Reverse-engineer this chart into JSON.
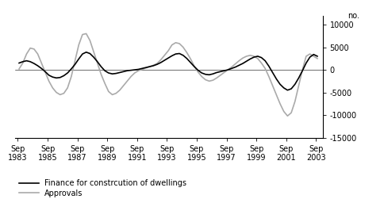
{
  "title": "",
  "ylabel_right": "no.",
  "ylim": [
    -15000,
    12000
  ],
  "yticks": [
    -15000,
    -10000,
    -5000,
    0,
    5000,
    10000
  ],
  "xtick_years": [
    1983,
    1985,
    1987,
    1989,
    1991,
    1993,
    1995,
    1997,
    1999,
    2001,
    2003
  ],
  "legend_finance": "Finance for constrcution of dwellings",
  "legend_approvals": "Approvals",
  "finance_color": "#000000",
  "approvals_color": "#aaaaaa",
  "finance_linewidth": 1.2,
  "approvals_linewidth": 1.2,
  "background_color": "#ffffff",
  "finance_x": [
    1983.75,
    1984.0,
    1984.25,
    1984.5,
    1984.75,
    1985.0,
    1985.25,
    1985.5,
    1985.75,
    1986.0,
    1986.25,
    1986.5,
    1986.75,
    1987.0,
    1987.25,
    1987.5,
    1987.75,
    1988.0,
    1988.25,
    1988.5,
    1988.75,
    1989.0,
    1989.25,
    1989.5,
    1989.75,
    1990.0,
    1990.25,
    1990.5,
    1990.75,
    1991.0,
    1991.25,
    1991.5,
    1991.75,
    1992.0,
    1992.25,
    1992.5,
    1992.75,
    1993.0,
    1993.25,
    1993.5,
    1993.75,
    1994.0,
    1994.25,
    1994.5,
    1994.75,
    1995.0,
    1995.25,
    1995.5,
    1995.75,
    1996.0,
    1996.25,
    1996.5,
    1996.75,
    1997.0,
    1997.25,
    1997.5,
    1997.75,
    1998.0,
    1998.25,
    1998.5,
    1998.75,
    1999.0,
    1999.25,
    1999.5,
    1999.75,
    2000.0,
    2000.25,
    2000.5,
    2000.75,
    2001.0,
    2001.25,
    2001.5,
    2001.75,
    2002.0,
    2002.25,
    2002.5,
    2002.75,
    2003.0,
    2003.25,
    2003.5,
    2003.75
  ],
  "finance_y": [
    1500,
    1800,
    2000,
    1800,
    1400,
    900,
    300,
    -400,
    -1200,
    -1600,
    -1800,
    -1700,
    -1300,
    -700,
    200,
    1200,
    2400,
    3500,
    3900,
    3600,
    2800,
    1800,
    700,
    -200,
    -700,
    -900,
    -800,
    -600,
    -400,
    -200,
    -100,
    0,
    100,
    300,
    500,
    700,
    900,
    1200,
    1600,
    2100,
    2600,
    3100,
    3500,
    3600,
    3200,
    2500,
    1600,
    700,
    -100,
    -700,
    -1000,
    -1100,
    -900,
    -600,
    -400,
    -200,
    0,
    300,
    600,
    1000,
    1400,
    1900,
    2400,
    2800,
    3000,
    2700,
    2000,
    800,
    -600,
    -2000,
    -3200,
    -4000,
    -4500,
    -4200,
    -3200,
    -1800,
    -200,
    1500,
    2800,
    3400,
    3000
  ],
  "approvals_x": [
    1983.75,
    1984.0,
    1984.25,
    1984.5,
    1984.75,
    1985.0,
    1985.25,
    1985.5,
    1985.75,
    1986.0,
    1986.25,
    1986.5,
    1986.75,
    1987.0,
    1987.25,
    1987.5,
    1987.75,
    1988.0,
    1988.25,
    1988.5,
    1988.75,
    1989.0,
    1989.25,
    1989.5,
    1989.75,
    1990.0,
    1990.25,
    1990.5,
    1990.75,
    1991.0,
    1991.25,
    1991.5,
    1991.75,
    1992.0,
    1992.25,
    1992.5,
    1992.75,
    1993.0,
    1993.25,
    1993.5,
    1993.75,
    1994.0,
    1994.25,
    1994.5,
    1994.75,
    1995.0,
    1995.25,
    1995.5,
    1995.75,
    1996.0,
    1996.25,
    1996.5,
    1996.75,
    1997.0,
    1997.25,
    1997.5,
    1997.75,
    1998.0,
    1998.25,
    1998.5,
    1998.75,
    1999.0,
    1999.25,
    1999.5,
    1999.75,
    2000.0,
    2000.25,
    2000.5,
    2000.75,
    2001.0,
    2001.25,
    2001.5,
    2001.75,
    2002.0,
    2002.25,
    2002.5,
    2002.75,
    2003.0,
    2003.25,
    2003.5,
    2003.75
  ],
  "approvals_y": [
    200,
    1500,
    3500,
    4800,
    4600,
    3500,
    1500,
    -500,
    -2500,
    -4000,
    -5000,
    -5500,
    -5200,
    -4000,
    -1500,
    2000,
    5500,
    7800,
    8000,
    6500,
    4000,
    1500,
    -1000,
    -3000,
    -4800,
    -5500,
    -5200,
    -4500,
    -3500,
    -2500,
    -1500,
    -700,
    -200,
    100,
    400,
    700,
    1000,
    1400,
    2200,
    3200,
    4200,
    5500,
    6000,
    5800,
    5000,
    3800,
    2400,
    800,
    -500,
    -1500,
    -2200,
    -2500,
    -2300,
    -1800,
    -1200,
    -600,
    0,
    600,
    1300,
    2000,
    2600,
    3000,
    3200,
    3000,
    2500,
    1500,
    300,
    -1500,
    -3500,
    -5500,
    -7500,
    -9200,
    -10200,
    -9500,
    -7000,
    -3500,
    0,
    3000,
    3500,
    3000,
    2500
  ]
}
